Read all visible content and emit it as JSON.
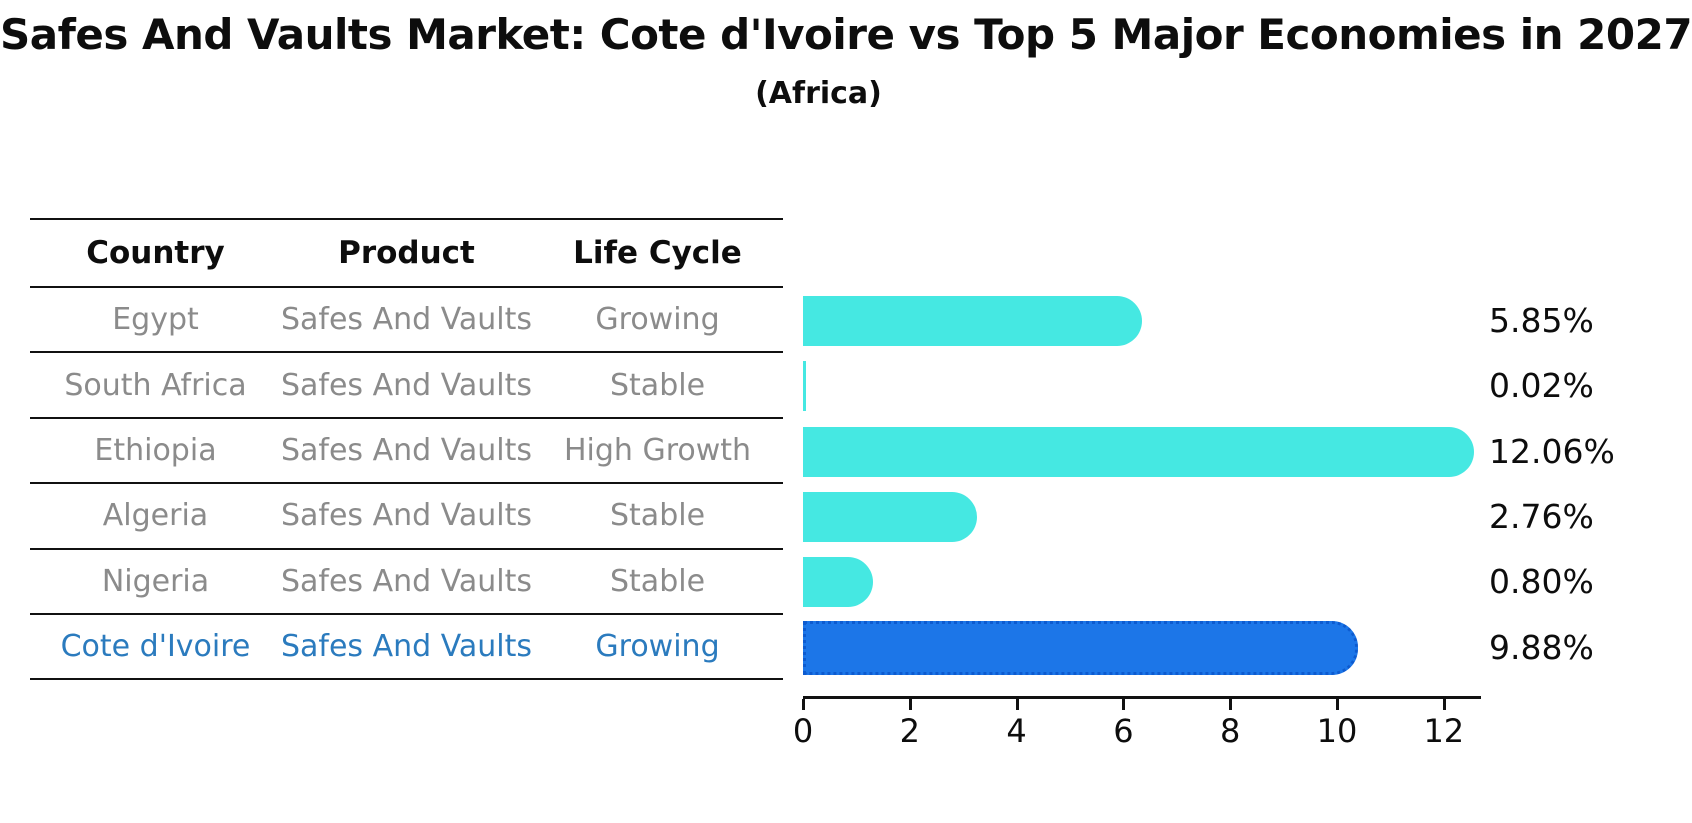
{
  "title": "Safes And Vaults Market: Cote d'Ivoire vs Top 5 Major Economies in 2027",
  "subtitle": "(Africa)",
  "table": {
    "headers": [
      "Country",
      "Product",
      "Life Cycle"
    ],
    "rows": [
      {
        "country": "Egypt",
        "product": "Safes And Vaults",
        "life_cycle": "Growing",
        "highlight": false
      },
      {
        "country": "South Africa",
        "product": "Safes And Vaults",
        "life_cycle": "Stable",
        "highlight": false
      },
      {
        "country": "Ethiopia",
        "product": "Safes And Vaults",
        "life_cycle": "High Growth",
        "highlight": false
      },
      {
        "country": "Algeria",
        "product": "Safes And Vaults",
        "life_cycle": "Stable",
        "highlight": false
      },
      {
        "country": "Nigeria",
        "product": "Safes And Vaults",
        "life_cycle": "Stable",
        "highlight": false
      },
      {
        "country": "Cote d'Ivoire",
        "product": "Safes And Vaults",
        "life_cycle": "Growing",
        "highlight": true
      }
    ]
  },
  "chart_data": {
    "type": "bar",
    "orientation": "horizontal",
    "categories": [
      "Egypt",
      "South Africa",
      "Ethiopia",
      "Algeria",
      "Nigeria",
      "Cote d'Ivoire"
    ],
    "values": [
      5.85,
      0.02,
      12.06,
      2.76,
      0.8,
      9.88
    ],
    "value_labels": [
      "5.85%",
      "0.02%",
      "12.06%",
      "2.76%",
      "0.80%",
      "9.88%"
    ],
    "xticks": [
      0,
      2,
      4,
      6,
      8,
      10,
      12
    ],
    "xlim": [
      0,
      12.68
    ],
    "grid": false,
    "legend": "none",
    "bar_color": "#45e8e2",
    "highlight_color": "#1c76e8",
    "highlight_index": 5,
    "highlight_style": "dotted-border"
  },
  "colors": {
    "text": "#0d0d0d",
    "muted_text": "#8b8b8b",
    "highlight_text": "#2b7bbe",
    "bar": "#45e8e2",
    "highlight_bar": "#1c76e8",
    "axis": "#111111"
  }
}
